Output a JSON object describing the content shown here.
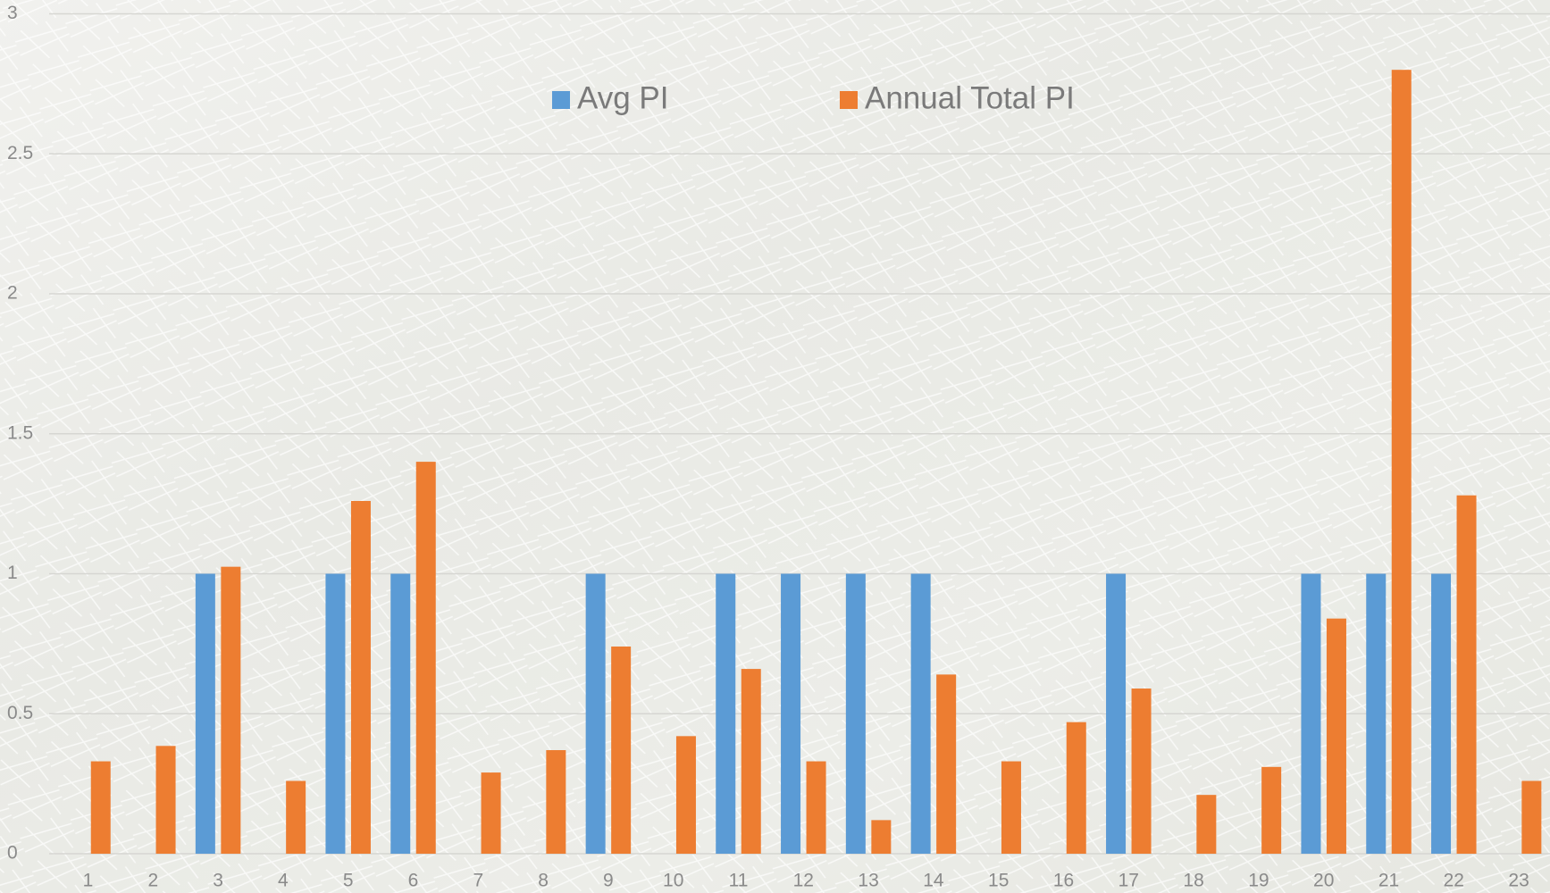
{
  "chart_data": {
    "type": "bar",
    "categories": [
      "1",
      "2",
      "3",
      "4",
      "5",
      "6",
      "7",
      "8",
      "9",
      "10",
      "11",
      "12",
      "13",
      "14",
      "15",
      "16",
      "17",
      "18",
      "19",
      "20",
      "21",
      "22",
      "23"
    ],
    "series": [
      {
        "name": "Avg PI",
        "color": "#5b9bd5",
        "values": [
          0,
          0,
          1,
          0,
          1,
          1,
          0,
          0,
          1,
          0,
          1,
          1,
          1,
          1,
          0,
          0,
          1,
          0,
          0,
          1,
          1,
          1,
          0
        ]
      },
      {
        "name": "Annual Total PI",
        "color": "#ed7d31",
        "values": [
          0.33,
          0.385,
          1.025,
          0.26,
          1.26,
          1.4,
          0.29,
          0.37,
          0.74,
          0.42,
          0.66,
          0.33,
          0.12,
          0.64,
          0.33,
          0.47,
          0.59,
          0.21,
          0.31,
          0.84,
          2.8,
          1.28,
          0.26
        ]
      }
    ],
    "ylim": [
      0,
      3
    ],
    "yticks": [
      0,
      0.5,
      1,
      1.5,
      2,
      2.5,
      3
    ],
    "grid": true,
    "legend": "top"
  }
}
